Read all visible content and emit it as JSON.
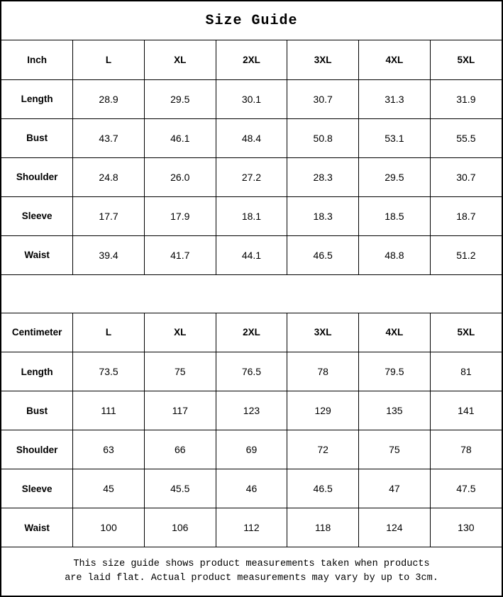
{
  "title": "Size Guide",
  "tables": [
    {
      "name": "inch-table",
      "unit_label": "Inch",
      "sizes": [
        "L",
        "XL",
        "2XL",
        "3XL",
        "4XL",
        "5XL"
      ],
      "rows": [
        {
          "label": "Length",
          "values": [
            "28.9",
            "29.5",
            "30.1",
            "30.7",
            "31.3",
            "31.9"
          ]
        },
        {
          "label": "Bust",
          "values": [
            "43.7",
            "46.1",
            "48.4",
            "50.8",
            "53.1",
            "55.5"
          ]
        },
        {
          "label": "Shoulder",
          "values": [
            "24.8",
            "26.0",
            "27.2",
            "28.3",
            "29.5",
            "30.7"
          ]
        },
        {
          "label": "Sleeve",
          "values": [
            "17.7",
            "17.9",
            "18.1",
            "18.3",
            "18.5",
            "18.7"
          ]
        },
        {
          "label": "Waist",
          "values": [
            "39.4",
            "41.7",
            "44.1",
            "46.5",
            "48.8",
            "51.2"
          ]
        }
      ]
    },
    {
      "name": "centimeter-table",
      "unit_label": "Centimeter",
      "sizes": [
        "L",
        "XL",
        "2XL",
        "3XL",
        "4XL",
        "5XL"
      ],
      "rows": [
        {
          "label": "Length",
          "values": [
            "73.5",
            "75",
            "76.5",
            "78",
            "79.5",
            "81"
          ]
        },
        {
          "label": "Bust",
          "values": [
            "111",
            "117",
            "123",
            "129",
            "135",
            "141"
          ]
        },
        {
          "label": "Shoulder",
          "values": [
            "63",
            "66",
            "69",
            "72",
            "75",
            "78"
          ]
        },
        {
          "label": "Sleeve",
          "values": [
            "45",
            "45.5",
            "46",
            "46.5",
            "47",
            "47.5"
          ]
        },
        {
          "label": "Waist",
          "values": [
            "100",
            "106",
            "112",
            "118",
            "124",
            "130"
          ]
        }
      ]
    }
  ],
  "footnote": {
    "line1": "This size guide shows product measurements taken when products",
    "line2": "are laid flat. Actual product measurements may vary by up to 3cm."
  }
}
